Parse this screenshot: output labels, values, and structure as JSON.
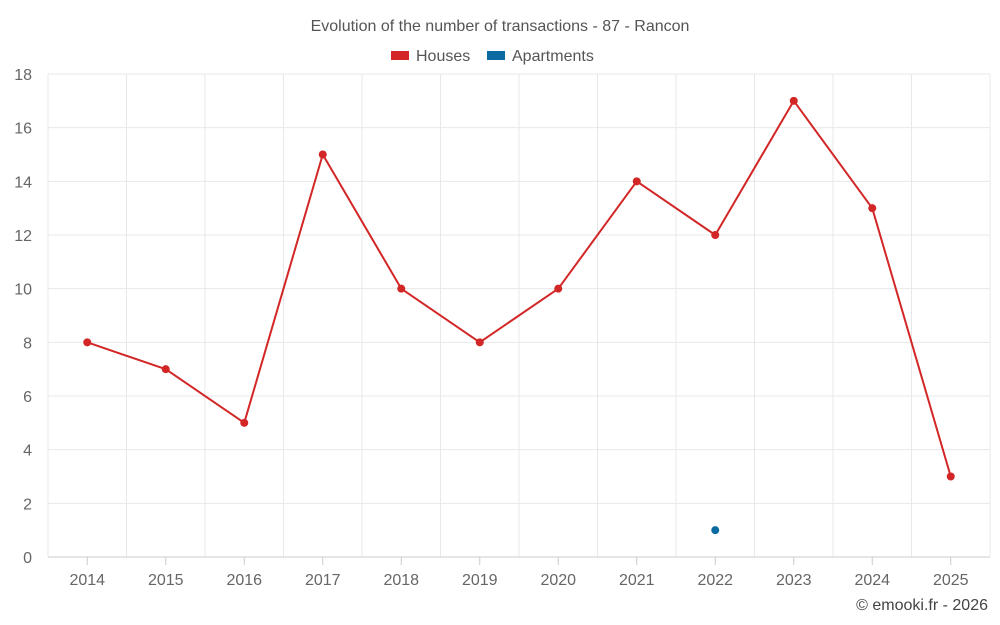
{
  "chart_data": {
    "type": "line",
    "title": "Evolution of the number of transactions - 87 - Rancon",
    "categories": [
      "2014",
      "2015",
      "2016",
      "2017",
      "2018",
      "2019",
      "2020",
      "2021",
      "2022",
      "2023",
      "2024",
      "2025"
    ],
    "series": [
      {
        "name": "Houses",
        "color": "#d32626",
        "values": [
          8,
          7,
          5,
          15,
          10,
          8,
          10,
          14,
          12,
          17,
          13,
          3
        ]
      },
      {
        "name": "Apartments",
        "color": "#0b6aa2",
        "values": [
          null,
          null,
          null,
          null,
          null,
          null,
          null,
          null,
          1,
          null,
          null,
          null
        ]
      }
    ],
    "ylim": [
      0,
      18
    ],
    "yticks": [
      0,
      2,
      4,
      6,
      8,
      10,
      12,
      14,
      16,
      18
    ],
    "xlabel": "",
    "ylabel": "",
    "legend_position": "top-center",
    "grid": true
  },
  "credit": "© emooki.fr - 2026"
}
